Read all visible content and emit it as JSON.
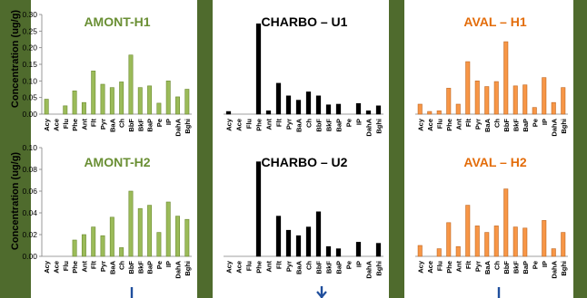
{
  "colors": {
    "background": "#4f6b2d",
    "panel": "#ffffff",
    "amont_bar": "#9bbb59",
    "amont_title": "#6a8f34",
    "charbo_bar": "#000000",
    "charbo_title": "#000000",
    "aval_bar": "#f79646",
    "aval_title": "#e36c0a",
    "arrow": "#1f4e9c"
  },
  "ylabel": "Concentration (ug/g)",
  "chart_data": [
    {
      "type": "bar",
      "title": "AMONT-H1",
      "categories": [
        "Acy",
        "Ace",
        "Flu",
        "Phe",
        "Ant",
        "Flt",
        "Pyr",
        "BaA",
        "Ch",
        "BbF",
        "BkF",
        "BaP",
        "Pe",
        "IP",
        "DahA",
        "Bghi"
      ],
      "values": [
        0.045,
        0,
        0.025,
        0.07,
        0.035,
        0.13,
        0.09,
        0.08,
        0.097,
        0.178,
        0.08,
        0.085,
        0.033,
        0.1,
        0.052,
        0.075
      ],
      "ylim": [
        0,
        0.3
      ],
      "yticks": [
        "0.00",
        "0.05",
        "0.10",
        "0.15",
        "0.20",
        "0.25",
        "0.30"
      ],
      "color_key": "amont"
    },
    {
      "type": "bar",
      "title": "CHARBO – U1",
      "categories": [
        "Acy",
        "Ace",
        "Flu",
        "Phe",
        "Ant",
        "Flt",
        "Pyr",
        "BaA",
        "Ch",
        "BbF",
        "BkF",
        "BaP",
        "Pe",
        "IP",
        "DahA",
        "Bghi"
      ],
      "values": [
        0.008,
        0,
        0,
        0.272,
        0.01,
        0.093,
        0.055,
        0.042,
        0.067,
        0.055,
        0.028,
        0.03,
        0,
        0.032,
        0.01,
        0.025
      ],
      "ylim": [
        0,
        0.3
      ],
      "color_key": "charbo"
    },
    {
      "type": "bar",
      "title": "AVAL – H1",
      "categories": [
        "Acy",
        "Ace",
        "Flu",
        "Phe",
        "Ant",
        "Flt",
        "Pyr",
        "BaA",
        "Ch",
        "BbF",
        "BkF",
        "BaP",
        "Pe",
        "IP",
        "DahA",
        "Bghi"
      ],
      "values": [
        0.03,
        0.008,
        0.01,
        0.078,
        0.03,
        0.158,
        0.1,
        0.083,
        0.098,
        0.218,
        0.085,
        0.088,
        0.02,
        0.11,
        0.035,
        0.08
      ],
      "ylim": [
        0,
        0.3
      ],
      "color_key": "aval"
    },
    {
      "type": "bar",
      "title": "AMONT-H2",
      "categories": [
        "Acy",
        "Ace",
        "Flu",
        "Phe",
        "Ant",
        "Flt",
        "Pyr",
        "BaA",
        "Ch",
        "BbF",
        "BkF",
        "BaP",
        "Pe",
        "IP",
        "DahA",
        "Bghi"
      ],
      "values": [
        0,
        0,
        0,
        0.015,
        0.02,
        0.027,
        0.019,
        0.036,
        0.008,
        0.06,
        0.044,
        0.047,
        0.022,
        0.05,
        0.037,
        0.034
      ],
      "ylim": [
        0,
        0.1
      ],
      "yticks": [
        "0.00",
        "0.02",
        "0.04",
        "0.06",
        "0.08",
        "0.10"
      ],
      "color_key": "amont"
    },
    {
      "type": "bar",
      "title": "CHARBO – U2",
      "categories": [
        "Acy",
        "Ace",
        "Flu",
        "Phe",
        "Ant",
        "Flt",
        "Pyr",
        "BaA",
        "Ch",
        "BbF",
        "BkF",
        "BaP",
        "Pe",
        "IP",
        "DahA",
        "Bghi"
      ],
      "values": [
        0,
        0,
        0,
        0.087,
        0,
        0.037,
        0.024,
        0.019,
        0.027,
        0.041,
        0.009,
        0.007,
        0,
        0.013,
        0,
        0.012
      ],
      "ylim": [
        0,
        0.1
      ],
      "color_key": "charbo"
    },
    {
      "type": "bar",
      "title": "AVAL – H2",
      "categories": [
        "Acy",
        "Ace",
        "Flu",
        "Phe",
        "Ant",
        "Flt",
        "Pyr",
        "BaA",
        "Ch",
        "BbF",
        "BkF",
        "BaP",
        "Pe",
        "IP",
        "DahA",
        "Bghi"
      ],
      "values": [
        0.01,
        0,
        0.007,
        0.031,
        0.009,
        0.047,
        0.028,
        0.022,
        0.028,
        0.062,
        0.027,
        0.026,
        0,
        0.033,
        0.007,
        0.022
      ],
      "ylim": [
        0,
        0.1
      ],
      "color_key": "aval"
    }
  ]
}
